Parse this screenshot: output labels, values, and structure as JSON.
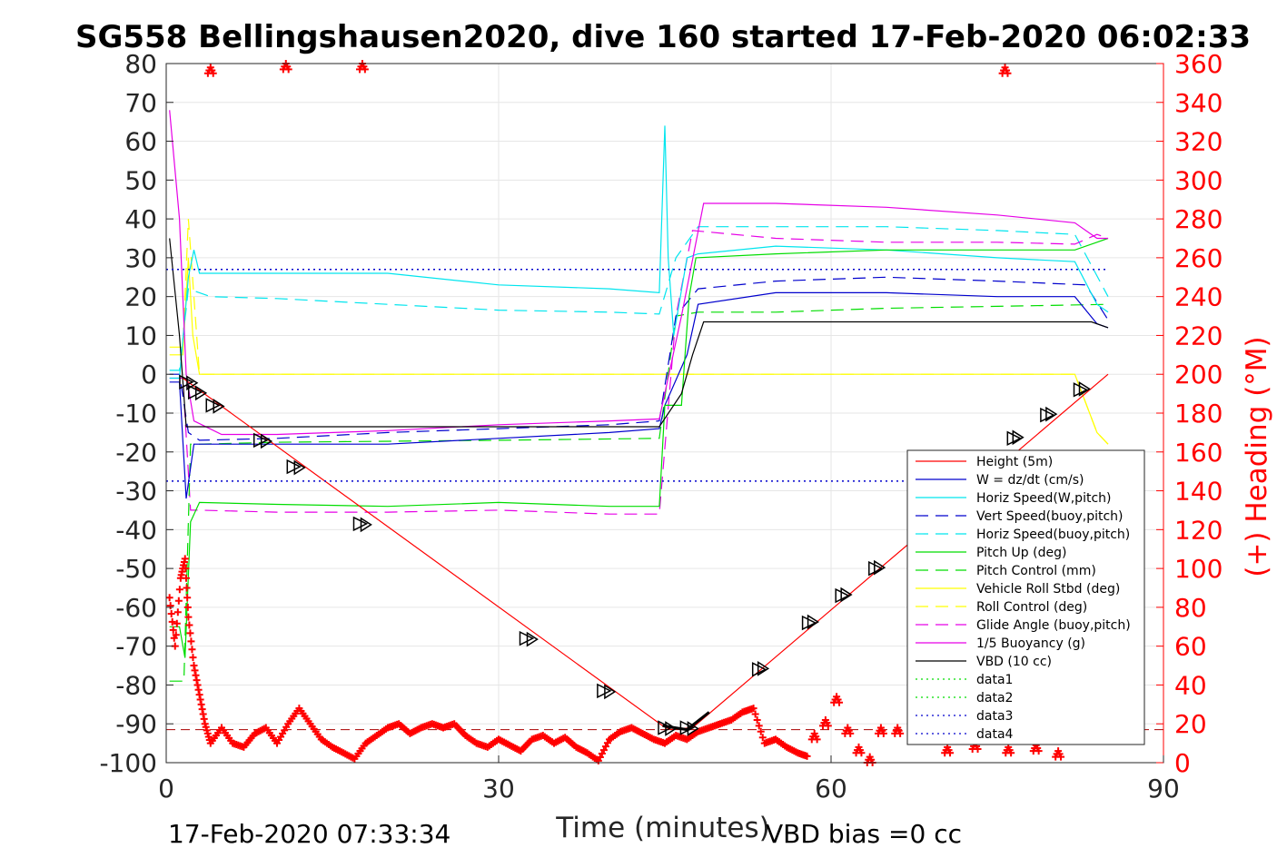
{
  "chart_data": {
    "type": "line",
    "title": "SG558 Bellingshausen2020, dive 160 started 17-Feb-2020 06:02:33",
    "xlabel": "Time (minutes)",
    "ylabel": "",
    "ylabel_right": "(+) Heading (°M)",
    "xlim": [
      0,
      90
    ],
    "ylim": [
      -100,
      80
    ],
    "ylim_right": [
      0,
      360
    ],
    "x_ticks": [
      "0",
      "30",
      "60",
      "90"
    ],
    "y_ticks": [
      "80",
      "70",
      "60",
      "50",
      "40",
      "30",
      "20",
      "10",
      "0",
      "-10",
      "-20",
      "-30",
      "-40",
      "-50",
      "-60",
      "-70",
      "-80",
      "-90",
      "-100"
    ],
    "y_ticks_right": [
      "360",
      "340",
      "320",
      "300",
      "280",
      "260",
      "240",
      "220",
      "200",
      "180",
      "160",
      "140",
      "120",
      "100",
      "80",
      "60",
      "40",
      "20",
      "0"
    ],
    "grid": true,
    "legend_position": "right-bottom",
    "footer_left": "17-Feb-2020 07:33:34",
    "footer_right": "VBD bias =0 cc",
    "colors": {
      "red": "#ff0000",
      "blue": "#0000cd",
      "cyan": "#00e5ee",
      "green": "#00dd00",
      "yellow": "#ffff00",
      "magenta": "#e600e6",
      "black": "#000000"
    },
    "series": [
      {
        "name": "Height (5m)",
        "color": "#ff0000",
        "style": "solid",
        "x": [
          1.5,
          44.8,
          45.5,
          47.5,
          85
        ],
        "y": [
          -1,
          -90.5,
          -91.5,
          -91,
          0
        ]
      },
      {
        "name": "W = dz/dt (cm/s)",
        "color": "#0000cd",
        "style": "solid",
        "x": [
          0.3,
          1.2,
          1.8,
          2.5,
          10,
          20,
          30,
          40,
          44.5,
          45,
          47,
          48,
          55,
          65,
          75,
          82,
          84,
          85
        ],
        "y": [
          -2,
          -2,
          -32,
          -18,
          -18,
          -18,
          -16.5,
          -15,
          -14,
          -8,
          5,
          18,
          21,
          21,
          20,
          20,
          13,
          12
        ]
      },
      {
        "name": "Horiz Speed(W,pitch)",
        "color": "#00e5ee",
        "style": "solid",
        "x": [
          0.3,
          1.2,
          2,
          2.5,
          3,
          10,
          20,
          30,
          40,
          44.5,
          45,
          45.3,
          45.8,
          47,
          48,
          55,
          65,
          75,
          82,
          84,
          85
        ],
        "y": [
          -1,
          -1,
          25,
          32,
          26,
          26,
          26,
          23,
          22,
          21,
          64,
          30,
          10,
          30,
          31,
          33,
          32,
          30,
          29,
          18,
          16
        ]
      },
      {
        "name": "Vert Speed(buoy,pitch)",
        "color": "#0000cd",
        "style": "dashed",
        "x": [
          0.3,
          1.2,
          2,
          3,
          10,
          20,
          30,
          40,
          44.5,
          46,
          48,
          55,
          65,
          75,
          83,
          85
        ],
        "y": [
          0,
          0,
          -15,
          -17,
          -16.5,
          -15,
          -14,
          -13,
          -12,
          15,
          22,
          24,
          25,
          24,
          23,
          14
        ]
      },
      {
        "name": "Horiz Speed(buoy,pitch)",
        "color": "#00e5ee",
        "style": "dashed",
        "x": [
          0.3,
          1.2,
          2,
          4,
          10,
          20,
          30,
          40,
          44.5,
          46,
          48,
          55,
          65,
          75,
          82,
          85
        ],
        "y": [
          1,
          1,
          22,
          20,
          19.5,
          18,
          16.5,
          16,
          15.5,
          30,
          38,
          38,
          38,
          37,
          36,
          20
        ]
      },
      {
        "name": "Pitch Up (deg)",
        "color": "#00dd00",
        "style": "solid",
        "x": [
          0.3,
          1.2,
          1.7,
          2.2,
          3,
          10,
          20,
          30,
          40,
          44.5,
          45,
          46.5,
          47.2,
          47.8,
          55,
          65,
          75,
          82,
          84,
          85
        ],
        "y": [
          -65,
          -65,
          -73,
          -38,
          -33,
          -33.5,
          -34,
          -33,
          -34,
          -34,
          -8,
          -8,
          20,
          30,
          31,
          32,
          32,
          32,
          34,
          35
        ]
      },
      {
        "name": "Pitch Control (mm)",
        "color": "#00dd00",
        "style": "dashed",
        "x": [
          0.3,
          1.6,
          2.2,
          3,
          10,
          30,
          44.5,
          46,
          48,
          55,
          65,
          75,
          85
        ],
        "y": [
          -79,
          -79,
          -18,
          -18,
          -17.5,
          -17,
          -16.5,
          15,
          16,
          16,
          17,
          17.5,
          18
        ]
      },
      {
        "name": "Vehicle Roll Stbd (deg)",
        "color": "#ffff00",
        "style": "solid",
        "x": [
          0.3,
          1.5,
          2,
          2.4,
          3,
          10,
          20,
          30,
          40,
          44.5,
          45,
          55,
          65,
          75,
          82,
          84,
          85
        ],
        "y": [
          5,
          5,
          30,
          10,
          0,
          0,
          0,
          0,
          0,
          0,
          0,
          0,
          0,
          0,
          0,
          -15,
          -18
        ]
      },
      {
        "name": "Roll Control (deg)",
        "color": "#ffff00",
        "style": "dashed",
        "x": [
          0.3,
          1.5,
          2,
          3,
          10,
          20,
          30,
          40,
          44.5,
          45,
          55,
          65,
          75,
          82,
          84,
          85
        ],
        "y": [
          7,
          7,
          40,
          0,
          0,
          0,
          0,
          0,
          0,
          0,
          0,
          0,
          0,
          0,
          -15,
          -18
        ]
      },
      {
        "name": "Glide Angle (buoy,pitch)",
        "color": "#e600e6",
        "style": "dashed",
        "x": [
          0.3,
          1.5,
          2.2,
          3,
          10,
          20,
          30,
          40,
          44.5,
          46,
          47.5,
          55,
          65,
          75,
          82,
          84,
          85
        ],
        "y": [
          -1,
          -1,
          -35,
          -35,
          -35.5,
          -35.5,
          -35,
          -36,
          -36,
          15,
          37,
          35,
          34,
          34,
          33.5,
          36,
          35
        ]
      },
      {
        "name": "1/5 Buoyancy (g)",
        "color": "#e600e6",
        "style": "solid",
        "x": [
          0.3,
          1.2,
          1.8,
          2.5,
          5,
          10,
          20,
          30,
          40,
          44.5,
          46.5,
          48.5,
          55,
          65,
          75,
          82,
          84,
          85
        ],
        "y": [
          68,
          40,
          0,
          -12,
          -15.5,
          -15.5,
          -14.5,
          -13,
          -12,
          -11.5,
          15,
          44,
          44,
          43,
          41,
          39,
          35,
          35
        ]
      },
      {
        "name": "VBD (10 cc)",
        "color": "#000000",
        "style": "solid",
        "x": [
          0.3,
          1.2,
          1.8,
          3,
          10,
          20,
          30,
          40,
          44.5,
          46.5,
          47.5,
          48.5,
          55,
          65,
          75,
          83.5,
          85
        ],
        "y": [
          35,
          10,
          -13.5,
          -13.5,
          -13.5,
          -13.5,
          -13.5,
          -13.5,
          -13.5,
          -5,
          5,
          13.5,
          13.5,
          13.5,
          13.5,
          13.5,
          12
        ]
      },
      {
        "name": "data1",
        "color": "#00dd00",
        "style": "dotted",
        "x": [],
        "y": []
      },
      {
        "name": "data2",
        "color": "#00dd00",
        "style": "dotted",
        "x": [],
        "y": []
      },
      {
        "name": "data3",
        "color": "#0000cd",
        "style": "dotted",
        "x": [
          0,
          85
        ],
        "y": [
          27,
          27
        ]
      },
      {
        "name": "data4",
        "color": "#0000cd",
        "style": "dotted",
        "x": [
          0,
          85
        ],
        "y": [
          -27.5,
          -27.5
        ]
      }
    ],
    "heading": {
      "x": [
        0.3,
        0.8,
        1.3,
        1.7,
        2,
        2.5,
        3,
        3.5,
        4,
        5,
        6,
        7,
        8,
        9,
        10,
        11,
        12,
        13,
        14,
        15,
        16,
        17,
        18,
        19,
        20,
        21,
        22,
        23,
        24,
        25,
        26,
        27,
        28,
        29,
        30,
        31,
        32,
        33,
        34,
        35,
        36,
        37,
        38,
        39,
        40,
        41,
        42,
        43,
        44,
        45,
        46,
        47,
        48,
        49,
        50,
        51,
        52,
        53,
        54,
        55,
        56,
        57,
        58
      ],
      "y": [
        85,
        60,
        95,
        105,
        75,
        50,
        35,
        20,
        10,
        18,
        10,
        8,
        15,
        18,
        10,
        20,
        28,
        20,
        12,
        8,
        5,
        2,
        10,
        14,
        18,
        20,
        15,
        18,
        20,
        18,
        20,
        14,
        10,
        8,
        12,
        9,
        6,
        12,
        14,
        10,
        13,
        8,
        5,
        1,
        12,
        16,
        18,
        15,
        12,
        10,
        14,
        12,
        16,
        18,
        20,
        22,
        26,
        28,
        10,
        12,
        8,
        5,
        3
      ]
    },
    "heading_clusters": [
      {
        "x": 4.0,
        "y": 358
      },
      {
        "x": 10.8,
        "y": 360
      },
      {
        "x": 17.7,
        "y": 360
      },
      {
        "x": 75.7,
        "y": 358
      },
      {
        "x": 58.5,
        "y": 15
      },
      {
        "x": 59.5,
        "y": 22
      },
      {
        "x": 60.5,
        "y": 34
      },
      {
        "x": 61.5,
        "y": 18
      },
      {
        "x": 62.5,
        "y": 8
      },
      {
        "x": 63.5,
        "y": 3
      },
      {
        "x": 64.5,
        "y": 18
      },
      {
        "x": 66,
        "y": 18
      },
      {
        "x": 68,
        "y": 20
      },
      {
        "x": 70.5,
        "y": 8
      },
      {
        "x": 73,
        "y": 10
      },
      {
        "x": 76,
        "y": 8
      },
      {
        "x": 78.5,
        "y": 9
      },
      {
        "x": 80.5,
        "y": 6
      }
    ],
    "heading_desired": 17,
    "height_markers": {
      "down": [
        [
          1.8,
          -2
        ],
        [
          2.6,
          -4.6
        ],
        [
          4.2,
          -8
        ],
        [
          8.5,
          -17
        ],
        [
          11.5,
          -23.8
        ],
        [
          17.5,
          -38.5
        ],
        [
          32.5,
          -68
        ],
        [
          39.5,
          -81.5
        ],
        [
          45,
          -91
        ],
        [
          47,
          -91
        ]
      ],
      "up": [
        [
          53.5,
          -76
        ],
        [
          58,
          -64
        ],
        [
          61,
          -57
        ],
        [
          64,
          -50
        ],
        [
          76.5,
          -16.5
        ],
        [
          79.5,
          -10.5
        ],
        [
          82.5,
          -4
        ]
      ]
    }
  }
}
